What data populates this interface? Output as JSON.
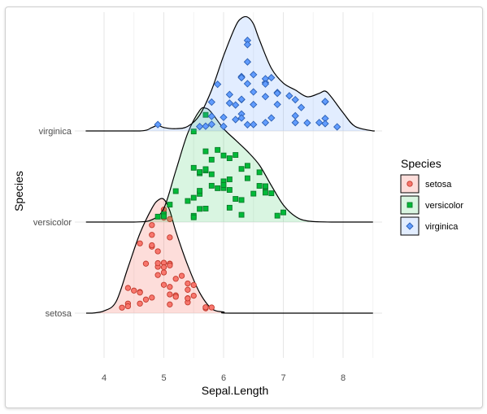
{
  "chart_data": {
    "type": "ridgeline",
    "xlabel": "Sepal.Length",
    "ylabel": "Species",
    "xlim": [
      3.7,
      8.5
    ],
    "x_ticks": [
      4,
      5,
      6,
      7,
      8
    ],
    "legend_title": "Species",
    "legend_position": "right",
    "grid": true,
    "categories": [
      "setosa",
      "versicolor",
      "virginica"
    ],
    "series": [
      {
        "name": "setosa",
        "color": "#F8766D",
        "fill": "rgba(248,118,109,0.25)",
        "density_x": [
          3.8,
          4.0,
          4.2,
          4.4,
          4.6,
          4.8,
          4.9,
          5.0,
          5.1,
          5.2,
          5.4,
          5.6,
          5.8,
          6.0,
          6.2
        ],
        "density_h": [
          0.0,
          0.02,
          0.1,
          0.4,
          0.7,
          0.92,
          0.99,
          1.0,
          0.9,
          0.72,
          0.42,
          0.18,
          0.04,
          0.01,
          0.0
        ],
        "points": [
          [
            5.1,
            3.5
          ],
          [
            4.9,
            3.0
          ],
          [
            4.7,
            3.2
          ],
          [
            4.6,
            3.1
          ],
          [
            5.0,
            3.6
          ],
          [
            5.4,
            3.9
          ],
          [
            4.6,
            3.4
          ],
          [
            5.0,
            3.4
          ],
          [
            4.4,
            2.9
          ],
          [
            4.9,
            3.1
          ],
          [
            5.4,
            3.7
          ],
          [
            4.8,
            3.4
          ],
          [
            4.8,
            3.0
          ],
          [
            4.3,
            3.0
          ],
          [
            5.8,
            4.0
          ],
          [
            5.7,
            4.4
          ],
          [
            5.4,
            3.9
          ],
          [
            5.1,
            3.5
          ],
          [
            5.7,
            3.8
          ],
          [
            5.1,
            3.8
          ],
          [
            5.4,
            3.4
          ],
          [
            5.1,
            3.7
          ],
          [
            4.6,
            3.6
          ],
          [
            5.1,
            3.3
          ],
          [
            4.8,
            3.4
          ],
          [
            5.0,
            3.0
          ],
          [
            5.0,
            3.4
          ],
          [
            5.2,
            3.5
          ],
          [
            5.2,
            3.4
          ],
          [
            4.7,
            3.2
          ],
          [
            4.8,
            3.1
          ],
          [
            5.4,
            3.4
          ],
          [
            5.2,
            4.1
          ],
          [
            5.5,
            4.2
          ],
          [
            4.9,
            3.1
          ],
          [
            5.0,
            3.2
          ],
          [
            5.5,
            3.5
          ],
          [
            4.9,
            3.6
          ],
          [
            4.4,
            3.0
          ],
          [
            5.1,
            3.4
          ],
          [
            5.0,
            3.5
          ],
          [
            4.5,
            2.3
          ],
          [
            4.4,
            3.2
          ],
          [
            5.0,
            3.5
          ],
          [
            5.1,
            3.8
          ],
          [
            4.8,
            3.0
          ],
          [
            5.1,
            3.8
          ],
          [
            4.6,
            3.2
          ],
          [
            5.3,
            3.7
          ],
          [
            5.0,
            3.3
          ]
        ]
      },
      {
        "name": "versicolor",
        "color": "#00BA38",
        "fill": "rgba(0,186,56,0.15)",
        "density_x": [
          3.8,
          4.5,
          4.8,
          5.0,
          5.2,
          5.4,
          5.6,
          5.7,
          5.8,
          6.0,
          6.2,
          6.4,
          6.6,
          6.8,
          7.0,
          7.2,
          7.4,
          7.8
        ],
        "density_h": [
          0.0,
          0.0,
          0.02,
          0.12,
          0.45,
          0.78,
          0.98,
          1.0,
          0.96,
          0.82,
          0.72,
          0.62,
          0.5,
          0.32,
          0.15,
          0.05,
          0.01,
          0.0
        ],
        "points": [
          [
            7.0,
            3.2
          ],
          [
            6.4,
            3.2
          ],
          [
            6.9,
            3.1
          ],
          [
            5.5,
            2.3
          ],
          [
            6.5,
            2.8
          ],
          [
            5.7,
            2.8
          ],
          [
            6.3,
            3.3
          ],
          [
            4.9,
            2.4
          ],
          [
            6.6,
            2.9
          ],
          [
            5.2,
            2.7
          ],
          [
            5.0,
            2.0
          ],
          [
            5.9,
            3.0
          ],
          [
            6.0,
            2.2
          ],
          [
            6.1,
            2.9
          ],
          [
            5.6,
            2.9
          ],
          [
            6.7,
            3.1
          ],
          [
            5.6,
            3.0
          ],
          [
            5.8,
            2.7
          ],
          [
            6.2,
            2.2
          ],
          [
            5.6,
            2.5
          ],
          [
            5.9,
            3.2
          ],
          [
            6.1,
            2.8
          ],
          [
            6.3,
            2.5
          ],
          [
            6.1,
            2.8
          ],
          [
            6.4,
            2.9
          ],
          [
            6.6,
            3.0
          ],
          [
            6.8,
            2.8
          ],
          [
            6.7,
            3.0
          ],
          [
            6.0,
            2.9
          ],
          [
            5.7,
            2.6
          ],
          [
            5.5,
            2.4
          ],
          [
            5.5,
            2.4
          ],
          [
            5.8,
            2.7
          ],
          [
            6.0,
            2.7
          ],
          [
            5.4,
            3.0
          ],
          [
            6.0,
            3.4
          ],
          [
            6.7,
            3.1
          ],
          [
            6.3,
            2.3
          ],
          [
            5.6,
            3.0
          ],
          [
            5.5,
            2.5
          ],
          [
            5.5,
            2.6
          ],
          [
            6.1,
            3.0
          ],
          [
            5.8,
            2.6
          ],
          [
            5.0,
            2.3
          ],
          [
            5.6,
            2.7
          ],
          [
            5.7,
            3.0
          ],
          [
            5.7,
            2.9
          ],
          [
            6.2,
            2.9
          ],
          [
            5.1,
            2.5
          ],
          [
            5.7,
            2.8
          ]
        ]
      },
      {
        "name": "virginica",
        "color": "#619CFF",
        "fill": "rgba(97,156,255,0.18)",
        "density_x": [
          3.8,
          4.6,
          4.8,
          4.9,
          5.0,
          5.2,
          5.4,
          5.6,
          5.8,
          6.0,
          6.2,
          6.3,
          6.4,
          6.5,
          6.6,
          6.8,
          7.0,
          7.2,
          7.4,
          7.6,
          7.7,
          7.8,
          8.0,
          8.2,
          8.5
        ],
        "density_h": [
          0.0,
          0.0,
          0.03,
          0.05,
          0.03,
          0.02,
          0.04,
          0.14,
          0.36,
          0.66,
          0.92,
          0.99,
          1.0,
          0.94,
          0.8,
          0.55,
          0.42,
          0.36,
          0.3,
          0.33,
          0.35,
          0.3,
          0.16,
          0.04,
          0.0
        ],
        "points": [
          [
            6.3,
            3.3
          ],
          [
            5.8,
            2.7
          ],
          [
            7.1,
            3.0
          ],
          [
            6.3,
            2.9
          ],
          [
            6.5,
            3.0
          ],
          [
            7.6,
            3.0
          ],
          [
            4.9,
            2.5
          ],
          [
            7.3,
            2.9
          ],
          [
            6.7,
            2.5
          ],
          [
            7.2,
            3.6
          ],
          [
            6.5,
            3.2
          ],
          [
            6.4,
            2.7
          ],
          [
            6.8,
            3.0
          ],
          [
            5.7,
            2.5
          ],
          [
            5.8,
            2.8
          ],
          [
            6.4,
            3.2
          ],
          [
            6.5,
            3.0
          ],
          [
            7.7,
            3.8
          ],
          [
            7.7,
            2.6
          ],
          [
            6.0,
            2.2
          ],
          [
            6.9,
            3.2
          ],
          [
            5.6,
            2.8
          ],
          [
            7.7,
            2.8
          ],
          [
            6.3,
            2.7
          ],
          [
            6.7,
            3.3
          ],
          [
            7.2,
            3.2
          ],
          [
            6.2,
            2.8
          ],
          [
            6.1,
            3.0
          ],
          [
            6.4,
            2.8
          ],
          [
            7.2,
            3.0
          ],
          [
            7.4,
            2.8
          ],
          [
            7.9,
            3.8
          ],
          [
            6.4,
            2.8
          ],
          [
            6.3,
            2.8
          ],
          [
            6.1,
            2.6
          ],
          [
            7.7,
            3.0
          ],
          [
            6.3,
            3.4
          ],
          [
            6.4,
            3.1
          ],
          [
            6.0,
            3.0
          ],
          [
            6.9,
            3.1
          ],
          [
            6.7,
            3.1
          ],
          [
            6.9,
            3.1
          ],
          [
            5.8,
            2.7
          ],
          [
            6.8,
            3.2
          ],
          [
            6.7,
            3.3
          ],
          [
            6.7,
            3.0
          ],
          [
            6.3,
            2.5
          ],
          [
            6.5,
            3.0
          ],
          [
            6.2,
            3.4
          ],
          [
            5.9,
            3.0
          ]
        ]
      }
    ]
  }
}
